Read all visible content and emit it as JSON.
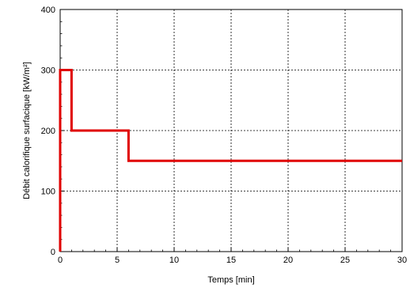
{
  "chart_data": {
    "type": "line",
    "title": "",
    "xlabel": "Temps [min]",
    "ylabel": "Débit calorifique surfacique [kW/m²]",
    "xlim": [
      0,
      30
    ],
    "ylim": [
      0,
      400
    ],
    "x_ticks": [
      0,
      5,
      10,
      15,
      20,
      25,
      30
    ],
    "y_ticks": [
      0,
      100,
      200,
      300,
      400
    ],
    "x_tick_labels": [
      "0",
      "5",
      "10",
      "15",
      "20",
      "25",
      "30"
    ],
    "y_tick_labels": [
      "0",
      "100",
      "200",
      "300",
      "400"
    ],
    "grid": true,
    "legend": "none",
    "series": [
      {
        "x": [
          0,
          0,
          1,
          1,
          6,
          6,
          30
        ],
        "y": [
          0,
          300,
          300,
          200,
          200,
          150,
          150
        ],
        "color": "#e00000"
      }
    ]
  }
}
